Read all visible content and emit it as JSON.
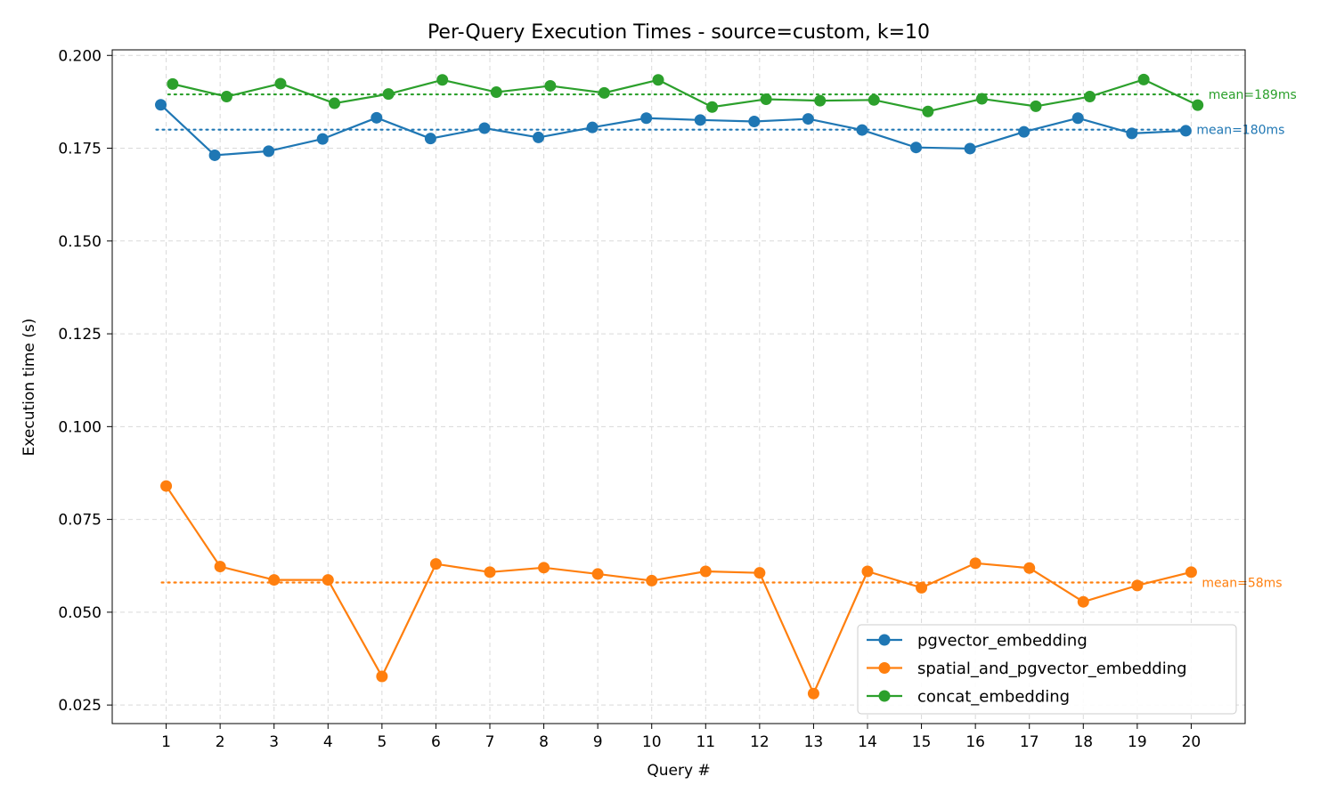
{
  "chart_data": {
    "type": "line",
    "title": "Per-Query Execution Times - source=custom, k=10",
    "xlabel": "Query #",
    "ylabel": "Execution time (s)",
    "x": [
      1,
      2,
      3,
      4,
      5,
      6,
      7,
      8,
      9,
      10,
      11,
      12,
      13,
      14,
      15,
      16,
      17,
      18,
      19,
      20
    ],
    "xlim": [
      0,
      21
    ],
    "ylim": [
      0.02,
      0.2015
    ],
    "yticks": [
      0.025,
      0.05,
      0.075,
      0.1,
      0.125,
      0.15,
      0.175,
      0.2
    ],
    "ytick_labels": [
      "0.025",
      "0.050",
      "0.075",
      "0.100",
      "0.125",
      "0.150",
      "0.175",
      "0.200"
    ],
    "grid": true,
    "legend_position": "lower-right",
    "series": [
      {
        "name": "pgvector_embedding",
        "color": "#1f77b4",
        "x_offset": -0.1,
        "values": [
          0.1867,
          0.1731,
          0.1742,
          0.1775,
          0.1832,
          0.1776,
          0.1804,
          0.1779,
          0.1806,
          0.1831,
          0.1826,
          0.1822,
          0.1829,
          0.1799,
          0.1752,
          0.1749,
          0.1794,
          0.1831,
          0.179,
          0.1797
        ],
        "mean": 0.18,
        "mean_label": "mean=180ms"
      },
      {
        "name": "spatial_and_pgvector_embedding",
        "color": "#ff7f0e",
        "x_offset": 0.0,
        "values": [
          0.084,
          0.0623,
          0.0587,
          0.0587,
          0.0327,
          0.063,
          0.0608,
          0.062,
          0.0603,
          0.0585,
          0.061,
          0.0606,
          0.0281,
          0.061,
          0.0566,
          0.0632,
          0.0619,
          0.0528,
          0.0572,
          0.0608
        ],
        "mean": 0.058,
        "mean_label": "mean=58ms"
      },
      {
        "name": "concat_embedding",
        "color": "#2ca02c",
        "x_offset": 0.12,
        "values": [
          0.1923,
          0.1889,
          0.1924,
          0.1871,
          0.1896,
          0.1934,
          0.1901,
          0.1918,
          0.1899,
          0.1934,
          0.1861,
          0.1882,
          0.1878,
          0.188,
          0.1849,
          0.1883,
          0.1863,
          0.1889,
          0.1935,
          0.1866
        ],
        "mean": 0.1895,
        "mean_label": "mean=189ms"
      }
    ]
  }
}
